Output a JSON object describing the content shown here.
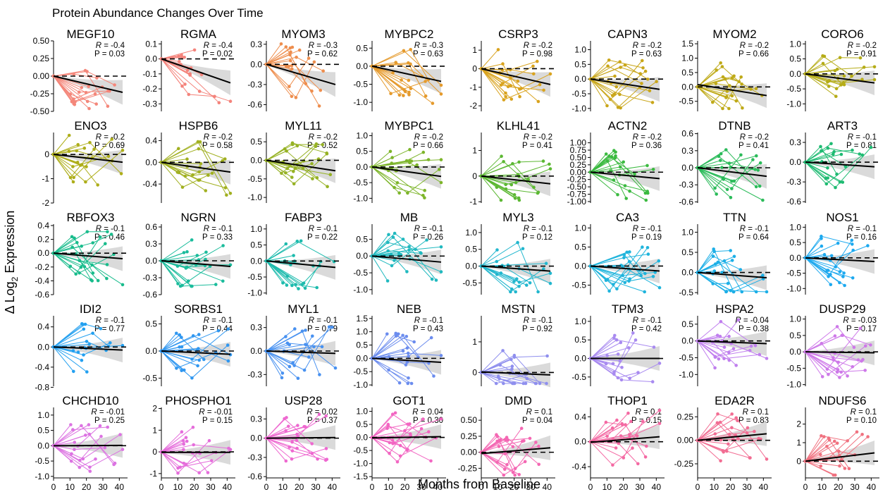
{
  "title": "Protein Abundance Changes Over Time",
  "xlabel": "Months from Baseline",
  "ylabel_prefix": "Δ Log",
  "ylabel_sub": "2",
  "ylabel_suffix": " Expression",
  "chart_data": {
    "type": "line",
    "title": "Protein Abundance Changes Over Time",
    "xlabel": "Months from Baseline",
    "ylabel": "Δ Log2 Expression",
    "xlim": [
      0,
      45
    ],
    "xticks": [
      0,
      10,
      20,
      30,
      40
    ],
    "grid": false,
    "panels": [
      {
        "name": "MEGF10",
        "R": "-0.4",
        "P": "0.03",
        "color": "#F4877A",
        "ylim": [
          -0.5,
          0.5
        ],
        "yticks": [
          -0.5,
          -0.25,
          0,
          0.25,
          0.5
        ],
        "ytick_labels": [
          "-0.50",
          "-0.25",
          "0.00",
          "0.25",
          "0.50"
        ],
        "fit": [
          0,
          -0.23
        ]
      },
      {
        "name": "RGMA",
        "R": "-0.4",
        "P": "0.02",
        "color": "#F4837B",
        "ylim": [
          -0.35,
          0.12
        ],
        "yticks": [
          -0.3,
          -0.2,
          -0.1,
          0,
          0.1
        ],
        "ytick_labels": [
          "-0.3",
          "-0.2",
          "-0.1",
          "0.0",
          "0.1"
        ],
        "fit": [
          0,
          -0.16
        ]
      },
      {
        "name": "MYOM3",
        "R": "-0.3",
        "P": "0.62",
        "color": "#EE8E4E",
        "ylim": [
          -0.7,
          0.35
        ],
        "yticks": [
          -0.6,
          -0.3,
          0,
          0.3
        ],
        "ytick_labels": [
          "-0.6",
          "-0.3",
          "0.0",
          "0.3"
        ],
        "fit": [
          0,
          -0.3
        ]
      },
      {
        "name": "MYBPC2",
        "R": "-0.3",
        "P": "0.63",
        "color": "#E59A2C",
        "ylim": [
          -1.25,
          0.7
        ],
        "yticks": [
          -1,
          -0.5,
          0,
          0.5
        ],
        "ytick_labels": [
          "-1.0",
          "-0.5",
          "0.0",
          "0.5"
        ],
        "fit": [
          0,
          -0.42
        ]
      },
      {
        "name": "CSRP3",
        "R": "-0.2",
        "P": "0.98",
        "color": "#D9A31E",
        "ylim": [
          -2.3,
          1.5
        ],
        "yticks": [
          -2,
          -1,
          0,
          1
        ],
        "ytick_labels": [
          "-2",
          "-1",
          "0",
          "1"
        ],
        "fit": [
          0,
          -0.85
        ]
      },
      {
        "name": "CAPN3",
        "R": "-0.2",
        "P": "0.63",
        "color": "#C9A61A",
        "ylim": [
          -1.1,
          1.3
        ],
        "yticks": [
          -1,
          -0.5,
          0,
          0.5,
          1
        ],
        "ytick_labels": [
          "-1.0",
          "-0.5",
          "0.0",
          "0.5",
          "1.0"
        ],
        "fit": [
          0,
          -0.35
        ]
      },
      {
        "name": "MYOM2",
        "R": "-0.2",
        "P": "0.66",
        "color": "#BFAA18",
        "ylim": [
          -0.85,
          1.6
        ],
        "yticks": [
          -0.5,
          0,
          0.5,
          1,
          1.5
        ],
        "ytick_labels": [
          "-0.5",
          "0.0",
          "0.5",
          "1.0",
          "1.5"
        ],
        "fit": [
          0.08,
          -0.3
        ]
      },
      {
        "name": "CORO6",
        "R": "-0.2",
        "P": "0.91",
        "color": "#B5AC17",
        "ylim": [
          -1.25,
          1.1
        ],
        "yticks": [
          -1,
          -0.5,
          0,
          0.5,
          1
        ],
        "ytick_labels": [
          "-1.0",
          "-0.5",
          "0.0",
          "0.5",
          "1.0"
        ],
        "fit": [
          0,
          -0.3
        ]
      },
      {
        "name": "ENO3",
        "R": "-0.2",
        "P": "0.69",
        "color": "#AEAE1A",
        "ylim": [
          -2,
          0.9
        ],
        "yticks": [
          -2,
          -1,
          0
        ],
        "ytick_labels": [
          "-2",
          "-1",
          "0"
        ],
        "fit": [
          0,
          -0.32
        ]
      },
      {
        "name": "HSPB6",
        "R": "-0.2",
        "P": "0.58",
        "color": "#A1B020",
        "ylim": [
          -0.75,
          0.55
        ],
        "yticks": [
          -0.4,
          0,
          0.4
        ],
        "ytick_labels": [
          "-0.4",
          "0.0",
          "0.4"
        ],
        "fit": [
          0,
          -0.18
        ]
      },
      {
        "name": "MYL11",
        "R": "-0.2",
        "P": "0.52",
        "color": "#96B224",
        "ylim": [
          -1.15,
          0.75
        ],
        "yticks": [
          -1,
          -0.5,
          0,
          0.5
        ],
        "ytick_labels": [
          "-1.0",
          "-0.5",
          "0.0",
          "0.5"
        ],
        "fit": [
          0,
          -0.28
        ]
      },
      {
        "name": "MYBPC1",
        "R": "-0.2",
        "P": "0.66",
        "color": "#7DB52A",
        "ylim": [
          -1.15,
          1.1
        ],
        "yticks": [
          -1,
          -0.5,
          0,
          0.5,
          1
        ],
        "ytick_labels": [
          "-1.0",
          "-0.5",
          "0.0",
          "0.5",
          "1.0"
        ],
        "fit": [
          0,
          -0.3
        ]
      },
      {
        "name": "KLHL41",
        "R": "-0.2",
        "P": "0.41",
        "color": "#5CB833",
        "ylim": [
          -1.05,
          1.7
        ],
        "yticks": [
          -1,
          0,
          1
        ],
        "ytick_labels": [
          "-1",
          "0",
          "1"
        ],
        "fit": [
          0,
          -0.3
        ]
      },
      {
        "name": "ACTN2",
        "R": "-0.2",
        "P": "0.36",
        "color": "#3BBA40",
        "ylim": [
          -1.05,
          1.35
        ],
        "yticks": [
          -1,
          -0.75,
          -0.5,
          -0.25,
          0,
          0.25,
          0.5,
          0.75,
          1
        ],
        "ytick_labels": [
          "-1.00",
          "-0.75",
          "-0.50",
          "-0.25",
          "0.00",
          "0.25",
          "0.50",
          "0.75",
          "1.00"
        ],
        "fit": [
          0,
          -0.22
        ]
      },
      {
        "name": "DTNB",
        "R": "-0.2",
        "P": "0.41",
        "color": "#2BBB5A",
        "ylim": [
          -0.62,
          0.62
        ],
        "yticks": [
          -0.6,
          -0.3,
          0,
          0.3,
          0.6
        ],
        "ytick_labels": [
          "-0.6",
          "-0.3",
          "0.0",
          "0.3",
          "0.6"
        ],
        "fit": [
          0,
          -0.15
        ]
      },
      {
        "name": "ART3",
        "R": "-0.1",
        "P": "0.81",
        "color": "#1EBB72",
        "ylim": [
          -0.62,
          0.45
        ],
        "yticks": [
          -0.6,
          -0.3,
          0,
          0.3
        ],
        "ytick_labels": [
          "-0.6",
          "-0.3",
          "0.0",
          "0.3"
        ],
        "fit": [
          0,
          -0.07
        ]
      },
      {
        "name": "RBFOX3",
        "R": "-0.1",
        "P": "0.46",
        "color": "#19BC8C",
        "ylim": [
          -0.6,
          0.42
        ],
        "yticks": [
          -0.6,
          -0.4,
          -0.2,
          0,
          0.2,
          0.4
        ],
        "ytick_labels": [
          "-0.6",
          "-0.4",
          "-0.2",
          "0.0",
          "0.2",
          "0.4"
        ],
        "fit": [
          0,
          -0.08
        ]
      },
      {
        "name": "NGRN",
        "R": "-0.1",
        "P": "0.33",
        "color": "#1BBC9C",
        "ylim": [
          -0.6,
          0.65
        ],
        "yticks": [
          -0.6,
          -0.3,
          0,
          0.3,
          0.6
        ],
        "ytick_labels": [
          "-0.6",
          "-0.3",
          "0.0",
          "0.3",
          "0.6"
        ],
        "fit": [
          0,
          -0.1
        ]
      },
      {
        "name": "FABP3",
        "R": "-0.1",
        "P": "0.22",
        "color": "#1DBBAD",
        "ylim": [
          -1.05,
          1.15
        ],
        "yticks": [
          -1,
          -0.5,
          0,
          0.5,
          1
        ],
        "ytick_labels": [
          "-1.0",
          "-0.5",
          "0.0",
          "0.5",
          "1.0"
        ],
        "fit": [
          0,
          -0.2
        ]
      },
      {
        "name": "MB",
        "R": "-0.1",
        "P": "0.26",
        "color": "#20B9BF",
        "ylim": [
          -1.15,
          0.95
        ],
        "yticks": [
          -1,
          -0.5,
          0,
          0.5
        ],
        "ytick_labels": [
          "-1.0",
          "-0.5",
          "0.0",
          "0.5"
        ],
        "fit": [
          0,
          -0.18
        ]
      },
      {
        "name": "MYL3",
        "R": "-0.1",
        "P": "0.12",
        "color": "#22B7CE",
        "ylim": [
          -0.85,
          1.25
        ],
        "yticks": [
          -0.5,
          0,
          0.5,
          1
        ],
        "ytick_labels": [
          "-0.5",
          "0.0",
          "0.5",
          "1.0"
        ],
        "fit": [
          0,
          -0.15
        ]
      },
      {
        "name": "CA3",
        "R": "-0.1",
        "P": "0.19",
        "color": "#1FB4DC",
        "ylim": [
          -0.75,
          1.1
        ],
        "yticks": [
          -0.5,
          0,
          0.5,
          1
        ],
        "ytick_labels": [
          "-0.5",
          "0.0",
          "0.5",
          "1.0"
        ],
        "fit": [
          0,
          -0.13
        ]
      },
      {
        "name": "TTN",
        "R": "-0.1",
        "P": "0.64",
        "color": "#1CAFE7",
        "ylim": [
          -0.55,
          1.2
        ],
        "yticks": [
          -0.5,
          0,
          0.5,
          1
        ],
        "ytick_labels": [
          "-0.5",
          "0.0",
          "0.5",
          "1.0"
        ],
        "fit": [
          0,
          -0.13
        ]
      },
      {
        "name": "NOS1",
        "R": "-0.1",
        "P": "0.16",
        "color": "#1DA9EF",
        "ylim": [
          -1.2,
          1.1
        ],
        "yticks": [
          -1,
          -0.5,
          0,
          0.5,
          1
        ],
        "ytick_labels": [
          "-1.0",
          "-0.5",
          "0.0",
          "0.5",
          "1.0"
        ],
        "fit": [
          0,
          -0.12
        ]
      },
      {
        "name": "IDI2",
        "R": "-0.1",
        "P": "0.77",
        "color": "#23A0F0",
        "ylim": [
          -0.78,
          0.62
        ],
        "yticks": [
          -0.8,
          -0.4,
          0,
          0.4
        ],
        "ytick_labels": [
          "-0.8",
          "-0.4",
          "0.0",
          "0.4"
        ],
        "fit": [
          0,
          -0.06
        ]
      },
      {
        "name": "SORBS1",
        "R": "-0.1",
        "P": "0.44",
        "color": "#3097F0",
        "ylim": [
          -0.65,
          0.65
        ],
        "yticks": [
          -0.5,
          0,
          0.5
        ],
        "ytick_labels": [
          "-0.5",
          "0.0",
          "0.5"
        ],
        "fit": [
          0,
          -0.06
        ]
      },
      {
        "name": "MYL1",
        "R": "-0.1",
        "P": "0.79",
        "color": "#4891F0",
        "ylim": [
          -0.45,
          0.45
        ],
        "yticks": [
          -0.3,
          0,
          0.3
        ],
        "ytick_labels": [
          "-0.3",
          "0.0",
          "0.3"
        ],
        "fit": [
          0,
          -0.03
        ]
      },
      {
        "name": "NEB",
        "R": "-0.1",
        "P": "0.43",
        "color": "#6B8CEE",
        "ylim": [
          -1.05,
          1.6
        ],
        "yticks": [
          -1,
          -0.5,
          0,
          0.5,
          1,
          1.5
        ],
        "ytick_labels": [
          "-1.0",
          "-0.5",
          "0.0",
          "0.5",
          "1.0",
          "1.5"
        ],
        "fit": [
          0,
          -0.15
        ]
      },
      {
        "name": "MSTN",
        "R": "-0.1",
        "P": "0.92",
        "color": "#8F8FEE",
        "ylim": [
          -0.45,
          1.85
        ],
        "yticks": [
          0,
          1
        ],
        "ytick_labels": [
          "0",
          "1"
        ],
        "fit": [
          0.02,
          -0.08
        ]
      },
      {
        "name": "TPM3",
        "R": "-0.1",
        "P": "0.42",
        "color": "#A88AF0",
        "ylim": [
          -0.75,
          1.15
        ],
        "yticks": [
          -0.5,
          0,
          0.5,
          1
        ],
        "ytick_labels": [
          "-0.5",
          "0.0",
          "0.5",
          "1.0"
        ],
        "fit": [
          0,
          0
        ]
      },
      {
        "name": "HSPA2",
        "R": "-0.04",
        "P": "0.38",
        "color": "#C07FEE",
        "ylim": [
          -1.35,
          0.75
        ],
        "yticks": [
          -1,
          -0.5,
          0,
          0.5
        ],
        "ytick_labels": [
          "-1.0",
          "-0.5",
          "0.0",
          "0.5"
        ],
        "fit": [
          0,
          -0.08
        ]
      },
      {
        "name": "DUSP29",
        "R": "-0.03",
        "P": "0.17",
        "color": "#CE79E9",
        "ylim": [
          -1.05,
          1.1
        ],
        "yticks": [
          -1,
          -0.5,
          0,
          0.5,
          1
        ],
        "ytick_labels": [
          "-1.0",
          "-0.5",
          "0.0",
          "0.5",
          "1.0"
        ],
        "fit": [
          0,
          -0.03
        ]
      },
      {
        "name": "CHCHD10",
        "R": "-0.01",
        "P": "0.25",
        "color": "#DC73E2",
        "ylim": [
          -1.05,
          1.25
        ],
        "yticks": [
          -1,
          -0.5,
          0,
          0.5,
          1
        ],
        "ytick_labels": [
          "-1.0",
          "-0.5",
          "0.0",
          "0.5",
          "1.0"
        ],
        "fit": [
          0,
          0.01
        ]
      },
      {
        "name": "PHOSPHO1",
        "R": "-0.01",
        "P": "0.15",
        "color": "#E56DDB",
        "ylim": [
          -1.2,
          2.05
        ],
        "yticks": [
          -1,
          0,
          1,
          2
        ],
        "ytick_labels": [
          "-1",
          "0",
          "1",
          "2"
        ],
        "fit": [
          -0.02,
          -0.02
        ]
      },
      {
        "name": "USP28",
        "R": "0.02",
        "P": "0.37",
        "color": "#EE68D0",
        "ylim": [
          -0.62,
          0.48
        ],
        "yticks": [
          -0.6,
          -0.3,
          0,
          0.3
        ],
        "ytick_labels": [
          "-0.6",
          "-0.3",
          "0.0",
          "0.3"
        ],
        "fit": [
          0,
          0.01
        ]
      },
      {
        "name": "GOT1",
        "R": "0.04",
        "P": "0.30",
        "color": "#F266C2",
        "ylim": [
          -1.55,
          1.15
        ],
        "yticks": [
          -1.5,
          -1,
          -0.5,
          0,
          0.5,
          1
        ],
        "ytick_labels": [
          "-1.5",
          "-1.0",
          "-0.5",
          "0.0",
          "0.5",
          "1.0"
        ],
        "fit": [
          -0.02,
          0.03
        ]
      },
      {
        "name": "DMD",
        "R": "0.1",
        "P": "0.04",
        "color": "#F467B3",
        "ylim": [
          -0.4,
          0.7
        ],
        "yticks": [
          -0.25,
          0,
          0.25,
          0.5
        ],
        "ytick_labels": [
          "-0.25",
          "0.00",
          "0.25",
          "0.50"
        ],
        "fit": [
          -0.02,
          0.07
        ]
      },
      {
        "name": "THOP1",
        "R": "0.1",
        "P": "0.15",
        "color": "#F469A3",
        "ylim": [
          -0.58,
          0.55
        ],
        "yticks": [
          -0.4,
          0,
          0.4
        ],
        "ytick_labels": [
          "-0.4",
          "0.0",
          "0.4"
        ],
        "fit": [
          -0.01,
          0.08
        ]
      },
      {
        "name": "EDA2R",
        "R": "0.1",
        "P": "0.83",
        "color": "#F26D93",
        "ylim": [
          -0.4,
          0.35
        ],
        "yticks": [
          -0.25,
          0,
          0.25
        ],
        "ytick_labels": [
          "-0.25",
          "0.00",
          "0.25"
        ],
        "fit": [
          0,
          0.07
        ]
      },
      {
        "name": "NDUFS6",
        "R": "0.1",
        "P": "0.10",
        "color": "#F07280",
        "ylim": [
          -0.9,
          2.9
        ],
        "yticks": [
          0,
          1,
          2
        ],
        "ytick_labels": [
          "0",
          "1",
          "2"
        ],
        "fit": [
          0,
          0.45
        ]
      }
    ]
  }
}
